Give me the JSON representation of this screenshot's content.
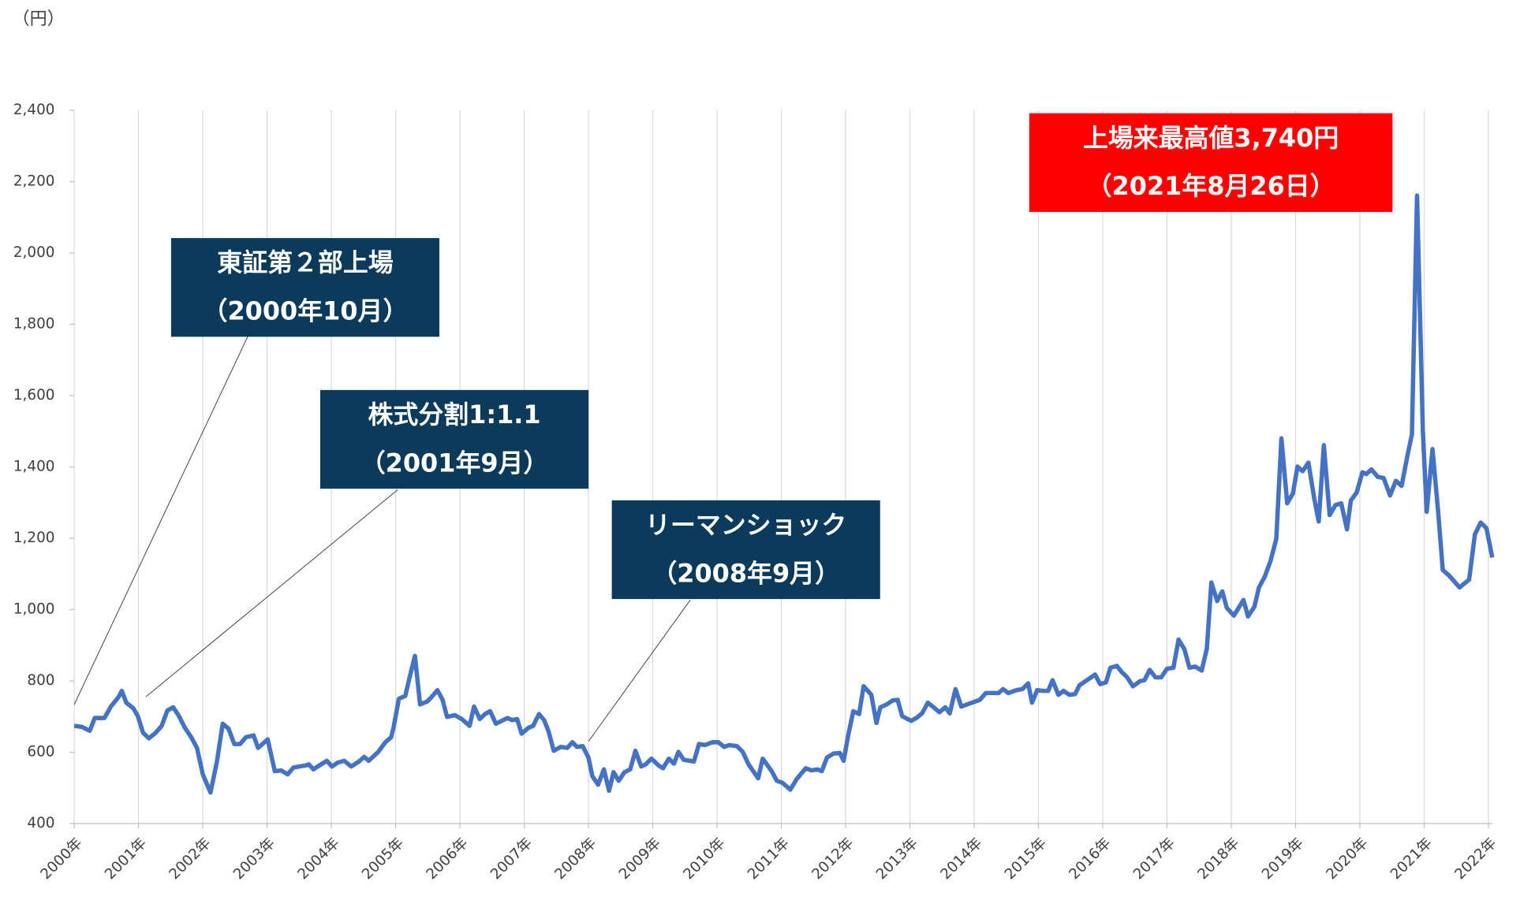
{
  "chart_data": {
    "type": "line",
    "y_axis_label": "（円）",
    "xlim": [
      2000,
      2022.06
    ],
    "xticks": [
      {
        "value": 2000,
        "label": "2000年"
      },
      {
        "value": 2001,
        "label": "2001年"
      },
      {
        "value": 2002,
        "label": "2002年"
      },
      {
        "value": 2003,
        "label": "2003年"
      },
      {
        "value": 2004,
        "label": "2004年"
      },
      {
        "value": 2005,
        "label": "2005年"
      },
      {
        "value": 2006,
        "label": "2006年"
      },
      {
        "value": 2007,
        "label": "2007年"
      },
      {
        "value": 2008,
        "label": "2008年"
      },
      {
        "value": 2009,
        "label": "2009年"
      },
      {
        "value": 2010,
        "label": "2010年"
      },
      {
        "value": 2011,
        "label": "2011年"
      },
      {
        "value": 2012,
        "label": "2012年"
      },
      {
        "value": 2013,
        "label": "2013年"
      },
      {
        "value": 2014,
        "label": "2014年"
      },
      {
        "value": 2015,
        "label": "2015年"
      },
      {
        "value": 2016,
        "label": "2016年"
      },
      {
        "value": 2017,
        "label": "2017年"
      },
      {
        "value": 2018,
        "label": "2018年"
      },
      {
        "value": 2019,
        "label": "2019年"
      },
      {
        "value": 2020,
        "label": "2020年"
      },
      {
        "value": 2021,
        "label": "2021年"
      },
      {
        "value": 2022,
        "label": "2022年"
      }
    ],
    "ylim": [
      400,
      2400
    ],
    "yticks": [
      400,
      600,
      800,
      {
        "value": 1000,
        "label": "1,000"
      },
      {
        "value": 1200,
        "label": "1,200"
      },
      {
        "value": 1400,
        "label": "1,400"
      },
      {
        "value": 1600,
        "label": "1,600"
      },
      {
        "value": 1800,
        "label": "1,800"
      },
      {
        "value": 2000,
        "label": "2,000"
      },
      {
        "value": 2200,
        "label": "2,200"
      },
      {
        "value": 2400,
        "label": "2,400"
      }
    ],
    "grid": "x",
    "x": [
      2000.0,
      2000.12,
      2000.24,
      2000.32,
      2000.47,
      2000.57,
      2000.69,
      2000.74,
      2000.81,
      2000.92,
      2000.99,
      2001.07,
      2001.16,
      2001.27,
      2001.36,
      2001.45,
      2001.54,
      2001.63,
      2001.72,
      2001.82,
      2001.91,
      2002.0,
      2002.12,
      2002.22,
      2002.31,
      2002.4,
      2002.49,
      2002.58,
      2002.67,
      2002.79,
      2002.86,
      2003.01,
      2003.12,
      2003.22,
      2003.32,
      2003.41,
      2003.6,
      2003.65,
      2003.72,
      2003.84,
      2003.93,
      2004.01,
      2004.1,
      2004.2,
      2004.31,
      2004.43,
      2004.51,
      2004.58,
      2004.73,
      2004.84,
      2004.93,
      2004.97,
      2005.05,
      2005.15,
      2005.21,
      2005.3,
      2005.38,
      2005.49,
      2005.56,
      2005.65,
      2005.73,
      2005.8,
      2005.92,
      2006.03,
      2006.15,
      2006.22,
      2006.31,
      2006.39,
      2006.47,
      2006.56,
      2006.65,
      2006.74,
      2006.81,
      2006.89,
      2006.96,
      2007.07,
      2007.14,
      2007.23,
      2007.31,
      2007.38,
      2007.46,
      2007.57,
      2007.67,
      2007.75,
      2007.82,
      2007.91,
      2008.0,
      2008.06,
      2008.15,
      2008.24,
      2008.32,
      2008.39,
      2008.47,
      2008.56,
      2008.65,
      2008.73,
      2008.82,
      2008.89,
      2008.98,
      2009.09,
      2009.16,
      2009.25,
      2009.33,
      2009.4,
      2009.48,
      2009.64,
      2009.72,
      2009.81,
      2009.93,
      2010.02,
      2010.11,
      2010.19,
      2010.31,
      2010.4,
      2010.49,
      2010.64,
      2010.71,
      2010.85,
      2010.93,
      2011.02,
      2011.14,
      2011.24,
      2011.38,
      2011.47,
      2011.56,
      2011.63,
      2011.71,
      2011.81,
      2011.91,
      2011.97,
      2012.04,
      2012.12,
      2012.21,
      2012.28,
      2012.4,
      2012.48,
      2012.54,
      2012.64,
      2012.73,
      2012.81,
      2012.88,
      2013.02,
      2013.1,
      2013.19,
      2013.28,
      2013.37,
      2013.46,
      2013.55,
      2013.62,
      2013.71,
      2013.8,
      2013.92,
      2014.09,
      2014.18,
      2014.27,
      2014.38,
      2014.45,
      2014.53,
      2014.66,
      2014.75,
      2014.84,
      2014.9,
      2014.98,
      2015.07,
      2015.15,
      2015.22,
      2015.31,
      2015.39,
      2015.48,
      2015.57,
      2015.64,
      2015.73,
      2015.82,
      2015.88,
      2015.96,
      2016.05,
      2016.12,
      2016.22,
      2016.29,
      2016.38,
      2016.47,
      2016.58,
      2016.65,
      2016.73,
      2016.82,
      2016.91,
      2017.0,
      2017.1,
      2017.18,
      2017.27,
      2017.35,
      2017.44,
      2017.54,
      2017.62,
      2017.69,
      2017.78,
      2017.86,
      2017.93,
      2018.04,
      2018.19,
      2018.26,
      2018.36,
      2018.43,
      2018.52,
      2018.61,
      2018.7,
      2018.78,
      2018.87,
      2018.96,
      2019.03,
      2019.11,
      2019.2,
      2019.29,
      2019.36,
      2019.44,
      2019.53,
      2019.62,
      2019.71,
      2019.8,
      2019.86,
      2019.95,
      2020.04,
      2020.1,
      2020.18,
      2020.28,
      2020.37,
      2020.47,
      2020.56,
      2020.65,
      2020.74,
      2020.81,
      2020.89,
      2020.98,
      2021.04,
      2021.13,
      2021.22,
      2021.29,
      2021.38,
      2021.46,
      2021.55,
      2021.7,
      2021.79,
      2021.88,
      2021.97,
      2022.06
    ],
    "series": [
      {
        "color": "#4472c4",
        "values": [
          674,
          671,
          660,
          696,
          696,
          728,
          755,
          772,
          739,
          723,
          701,
          655,
          639,
          655,
          674,
          717,
          726,
          701,
          669,
          642,
          612,
          538,
          487,
          574,
          680,
          666,
          623,
          623,
          642,
          647,
          612,
          636,
          547,
          549,
          538,
          557,
          563,
          566,
          552,
          566,
          576,
          560,
          571,
          576,
          560,
          574,
          587,
          576,
          601,
          628,
          642,
          671,
          750,
          758,
          804,
          870,
          734,
          742,
          755,
          774,
          747,
          699,
          704,
          693,
          674,
          728,
          693,
          707,
          715,
          680,
          688,
          696,
          690,
          693,
          652,
          669,
          674,
          707,
          690,
          658,
          604,
          615,
          612,
          628,
          615,
          617,
          585,
          533,
          509,
          552,
          492,
          544,
          520,
          544,
          552,
          604,
          560,
          566,
          582,
          563,
          555,
          582,
          568,
          601,
          579,
          574,
          623,
          620,
          628,
          628,
          615,
          620,
          617,
          601,
          566,
          527,
          582,
          547,
          520,
          514,
          495,
          525,
          555,
          549,
          552,
          547,
          585,
          596,
          598,
          576,
          647,
          715,
          707,
          785,
          761,
          682,
          726,
          734,
          745,
          747,
          701,
          688,
          696,
          709,
          739,
          726,
          712,
          726,
          709,
          777,
          728,
          736,
          747,
          766,
          766,
          766,
          777,
          766,
          774,
          777,
          793,
          739,
          774,
          772,
          772,
          802,
          761,
          772,
          761,
          763,
          788,
          799,
          810,
          818,
          791,
          796,
          837,
          842,
          826,
          810,
          785,
          799,
          802,
          831,
          810,
          810,
          834,
          837,
          916,
          889,
          837,
          840,
          829,
          891,
          1076,
          1024,
          1051,
          1005,
          983,
          1027,
          981,
          1008,
          1062,
          1092,
          1136,
          1198,
          1480,
          1298,
          1326,
          1401,
          1388,
          1412,
          1312,
          1247,
          1461,
          1265,
          1293,
          1298,
          1225,
          1306,
          1328,
          1385,
          1380,
          1393,
          1372,
          1369,
          1320,
          1361,
          1347,
          1431,
          1491,
          2161,
          1502,
          1274,
          1450,
          1271,
          1111,
          1097,
          1081,
          1062,
          1084,
          1211,
          1244,
          1228,
          1146
        ]
      }
    ],
    "annotations": [
      {
        "lines": [
          "東証第２部上場",
          "（2000年10月）"
        ]
      },
      {
        "lines": [
          "株式分割1:1.1",
          "（2001年9月）"
        ]
      },
      {
        "lines": [
          "リーマンショック",
          "（2008年9月）"
        ]
      },
      {
        "lines": [
          "上場来最高値3,740円",
          "（2021年8月26日）"
        ]
      }
    ]
  }
}
